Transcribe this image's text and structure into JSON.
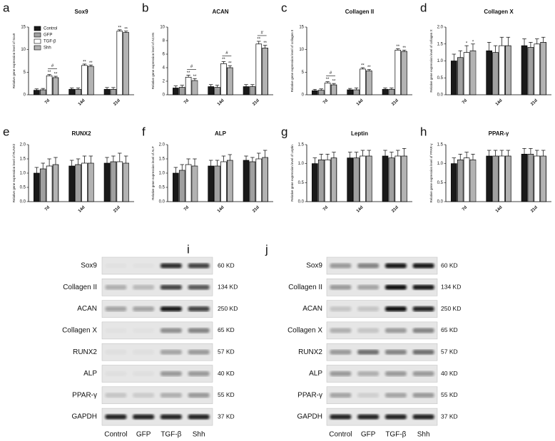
{
  "chart_data": [
    {
      "type": "bar",
      "panel": "a",
      "title": "Sox9",
      "ylabel": "Relative gene expression level of Sox9",
      "categories": [
        "7d",
        "14d",
        "21d"
      ],
      "ylim": [
        0,
        15
      ],
      "yticks": [
        0,
        5,
        10,
        15
      ],
      "legend": "upper-left",
      "series": [
        {
          "name": "Control",
          "color": "#1a1a1a",
          "values": [
            1.0,
            1.2,
            1.2
          ],
          "errors": [
            0.3,
            0.3,
            0.4
          ]
        },
        {
          "name": "GFP",
          "color": "#a0a0a0",
          "values": [
            1.1,
            1.2,
            1.2
          ],
          "errors": [
            0.3,
            0.3,
            0.4
          ]
        },
        {
          "name": "TGF-β",
          "color": "#ffffff",
          "values": [
            4.2,
            6.5,
            14.1
          ],
          "errors": [
            0.3,
            0.3,
            0.3
          ],
          "sig_labels": [
            "**",
            "**",
            "**"
          ]
        },
        {
          "name": "Shh",
          "color": "#ffffff",
          "hatch": "vertical",
          "values": [
            3.8,
            6.3,
            13.8
          ],
          "errors": [
            0.3,
            0.3,
            0.3
          ],
          "sig_labels": [
            "**",
            "**",
            "**"
          ]
        }
      ],
      "bracket_labels": [
        "#",
        null,
        null
      ]
    },
    {
      "type": "bar",
      "panel": "b",
      "title": "ACAN",
      "ylabel": "Relative gene expression level of ACAN",
      "categories": [
        "7d",
        "14d",
        "21d"
      ],
      "ylim": [
        0,
        10
      ],
      "yticks": [
        0,
        2,
        4,
        6,
        8,
        10
      ],
      "series": [
        {
          "color": "#1a1a1a",
          "values": [
            1.0,
            1.2,
            1.2
          ],
          "errors": [
            0.3,
            0.3,
            0.3
          ]
        },
        {
          "color": "#a0a0a0",
          "values": [
            1.1,
            1.1,
            1.2
          ],
          "errors": [
            0.3,
            0.3,
            0.3
          ]
        },
        {
          "color": "#ffffff",
          "values": [
            2.6,
            4.6,
            7.5
          ],
          "errors": [
            0.3,
            0.3,
            0.4
          ],
          "sig_labels": [
            "**",
            "**",
            "**"
          ]
        },
        {
          "color": "#ffffff",
          "hatch": "vertical",
          "values": [
            2.1,
            4.0,
            6.9
          ],
          "errors": [
            0.3,
            0.3,
            0.4
          ],
          "sig_labels": [
            "**",
            "**",
            "**"
          ]
        }
      ],
      "bracket_labels": [
        "#",
        "#",
        "#"
      ]
    },
    {
      "type": "bar",
      "panel": "c",
      "title": "Collagen II",
      "ylabel": "Relative gene expression level of collagen II",
      "categories": [
        "7d",
        "14d",
        "21d"
      ],
      "ylim": [
        0,
        15
      ],
      "yticks": [
        0,
        5,
        10,
        15
      ],
      "series": [
        {
          "color": "#1a1a1a",
          "values": [
            0.9,
            1.1,
            1.2
          ],
          "errors": [
            0.3,
            0.3,
            0.3
          ]
        },
        {
          "color": "#a0a0a0",
          "values": [
            1.0,
            1.1,
            1.2
          ],
          "errors": [
            0.3,
            0.4,
            0.3
          ]
        },
        {
          "color": "#ffffff",
          "values": [
            2.6,
            5.7,
            9.9
          ],
          "errors": [
            0.3,
            0.3,
            0.3
          ],
          "sig_labels": [
            "**",
            "**",
            "**"
          ]
        },
        {
          "color": "#ffffff",
          "hatch": "vertical",
          "values": [
            2.2,
            5.3,
            9.6
          ],
          "errors": [
            0.3,
            0.3,
            0.3
          ],
          "sig_labels": [
            "**",
            "**",
            "**"
          ]
        }
      ],
      "bracket_labels": [
        "#",
        null,
        null
      ]
    },
    {
      "type": "bar",
      "panel": "d",
      "title": "Collagen X",
      "ylabel": "Relative gene expression level of collagen X",
      "categories": [
        "7d",
        "14d",
        "21d"
      ],
      "ylim": [
        0,
        2
      ],
      "yticks": [
        {
          "value": 0,
          "label": "0.0"
        },
        0.5,
        {
          "value": 1,
          "label": "1.0"
        },
        1.5,
        {
          "value": 2,
          "label": "2.0"
        }
      ],
      "series": [
        {
          "color": "#1a1a1a",
          "values": [
            1.0,
            1.3,
            1.45
          ],
          "errors": [
            0.2,
            0.25,
            0.2
          ]
        },
        {
          "color": "#a0a0a0",
          "values": [
            1.1,
            1.25,
            1.4
          ],
          "errors": [
            0.2,
            0.2,
            0.15
          ]
        },
        {
          "color": "#ffffff",
          "values": [
            1.25,
            1.45,
            1.5
          ],
          "errors": [
            0.2,
            0.25,
            0.15
          ],
          "sig_labels": [
            "*",
            null,
            null
          ]
        },
        {
          "color": "#ffffff",
          "hatch": "vertical",
          "values": [
            1.3,
            1.45,
            1.55
          ],
          "errors": [
            0.2,
            0.25,
            0.15
          ],
          "sig_labels": [
            "*",
            null,
            null
          ]
        }
      ]
    },
    {
      "type": "bar",
      "panel": "e",
      "title": "RUNX2",
      "ylabel": "Relative gene expression level of RUNX2",
      "categories": [
        "7d",
        "14d",
        "21d"
      ],
      "ylim": [
        0,
        2
      ],
      "yticks": [
        {
          "value": 0,
          "label": "0.0"
        },
        0.5,
        {
          "value": 1,
          "label": "1.0"
        },
        1.5,
        {
          "value": 2,
          "label": "2.0"
        }
      ],
      "series": [
        {
          "color": "#1a1a1a",
          "values": [
            1.0,
            1.25,
            1.35
          ],
          "errors": [
            0.2,
            0.2,
            0.2
          ]
        },
        {
          "color": "#a0a0a0",
          "values": [
            1.15,
            1.3,
            1.4
          ],
          "errors": [
            0.2,
            0.2,
            0.2
          ]
        },
        {
          "color": "#ffffff",
          "values": [
            1.25,
            1.35,
            1.4
          ],
          "errors": [
            0.25,
            0.25,
            0.3
          ]
        },
        {
          "color": "#ffffff",
          "hatch": "vertical",
          "values": [
            1.3,
            1.35,
            1.35
          ],
          "errors": [
            0.25,
            0.25,
            0.25
          ]
        }
      ]
    },
    {
      "type": "bar",
      "panel": "f",
      "title": "ALP",
      "ylabel": "Relative gene expression level of ALP",
      "categories": [
        "7d",
        "14d",
        "21d"
      ],
      "ylim": [
        0,
        2
      ],
      "yticks": [
        {
          "value": 0,
          "label": "0.0"
        },
        0.5,
        {
          "value": 1,
          "label": "1.0"
        },
        1.5,
        {
          "value": 2,
          "label": "2.0"
        }
      ],
      "series": [
        {
          "color": "#1a1a1a",
          "values": [
            1.0,
            1.25,
            1.45
          ],
          "errors": [
            0.2,
            0.2,
            0.15
          ]
        },
        {
          "color": "#a0a0a0",
          "values": [
            1.1,
            1.25,
            1.4
          ],
          "errors": [
            0.2,
            0.2,
            0.15
          ]
        },
        {
          "color": "#ffffff",
          "values": [
            1.3,
            1.4,
            1.5
          ],
          "errors": [
            0.2,
            0.2,
            0.2
          ]
        },
        {
          "color": "#ffffff",
          "hatch": "vertical",
          "values": [
            1.25,
            1.45,
            1.55
          ],
          "errors": [
            0.25,
            0.2,
            0.25
          ]
        }
      ]
    },
    {
      "type": "bar",
      "panel": "g",
      "title": "Leptin",
      "ylabel": "Relative gene expression level of Leptin",
      "categories": [
        "7d",
        "14d",
        "21d"
      ],
      "ylim": [
        0,
        1.5
      ],
      "yticks": [
        {
          "value": 0,
          "label": "0.0"
        },
        0.5,
        {
          "value": 1,
          "label": "1.0"
        },
        1.5
      ],
      "series": [
        {
          "color": "#1a1a1a",
          "values": [
            1.0,
            1.15,
            1.2
          ],
          "errors": [
            0.15,
            0.15,
            0.15
          ]
        },
        {
          "color": "#a0a0a0",
          "values": [
            1.1,
            1.15,
            1.15
          ],
          "errors": [
            0.15,
            0.15,
            0.15
          ]
        },
        {
          "color": "#ffffff",
          "values": [
            1.1,
            1.2,
            1.2
          ],
          "errors": [
            0.15,
            0.15,
            0.15
          ]
        },
        {
          "color": "#ffffff",
          "hatch": "vertical",
          "values": [
            1.15,
            1.2,
            1.2
          ],
          "errors": [
            0.15,
            0.15,
            0.2
          ]
        }
      ]
    },
    {
      "type": "bar",
      "panel": "h",
      "title": "PPAR-γ",
      "ylabel": "Relative gene expression level of PPAR-γ",
      "categories": [
        "7d",
        "14d",
        "21d"
      ],
      "ylim": [
        0,
        1.5
      ],
      "yticks": [
        {
          "value": 0,
          "label": "0.0"
        },
        0.5,
        {
          "value": 1,
          "label": "1.0"
        },
        1.5
      ],
      "series": [
        {
          "color": "#1a1a1a",
          "values": [
            1.0,
            1.2,
            1.25
          ],
          "errors": [
            0.15,
            0.15,
            0.15
          ]
        },
        {
          "color": "#a0a0a0",
          "values": [
            1.1,
            1.2,
            1.25
          ],
          "errors": [
            0.15,
            0.15,
            0.15
          ]
        },
        {
          "color": "#ffffff",
          "values": [
            1.15,
            1.2,
            1.2
          ],
          "errors": [
            0.15,
            0.15,
            0.15
          ]
        },
        {
          "color": "#ffffff",
          "hatch": "vertical",
          "values": [
            1.1,
            1.2,
            1.2
          ],
          "errors": [
            0.15,
            0.15,
            0.15
          ]
        }
      ]
    }
  ],
  "blots": [
    {
      "label": "i",
      "lanes": [
        "Control",
        "GFP",
        "TGF-β",
        "Shh"
      ],
      "rows": [
        {
          "protein": "Sox9",
          "size": "60 KD"
        },
        {
          "protein": "Collagen II",
          "size": "134 KD"
        },
        {
          "protein": "ACAN",
          "size": "250 KD"
        },
        {
          "protein": "Collagen X",
          "size": "65 KD"
        },
        {
          "protein": "RUNX2",
          "size": "57 KD"
        },
        {
          "protein": "ALP",
          "size": "40 KD"
        },
        {
          "protein": "PPAR-γ",
          "size": "55 KD"
        },
        {
          "protein": "GAPDH",
          "size": "37 KD"
        }
      ]
    },
    {
      "label": "j",
      "lanes": [
        "Control",
        "GFP",
        "TGF-β",
        "Shh"
      ],
      "rows": [
        {
          "protein": "Sox9",
          "size": "60 KD"
        },
        {
          "protein": "Collagen II",
          "size": "134 KD"
        },
        {
          "protein": "ACAN",
          "size": "250 KD"
        },
        {
          "protein": "Collagen X",
          "size": "65 KD"
        },
        {
          "protein": "RUNX2",
          "size": "57 KD"
        },
        {
          "protein": "ALP",
          "size": "40 KD"
        },
        {
          "protein": "PPAR-γ",
          "size": "55 KD"
        },
        {
          "protein": "GAPDH",
          "size": "37 KD"
        }
      ]
    }
  ]
}
